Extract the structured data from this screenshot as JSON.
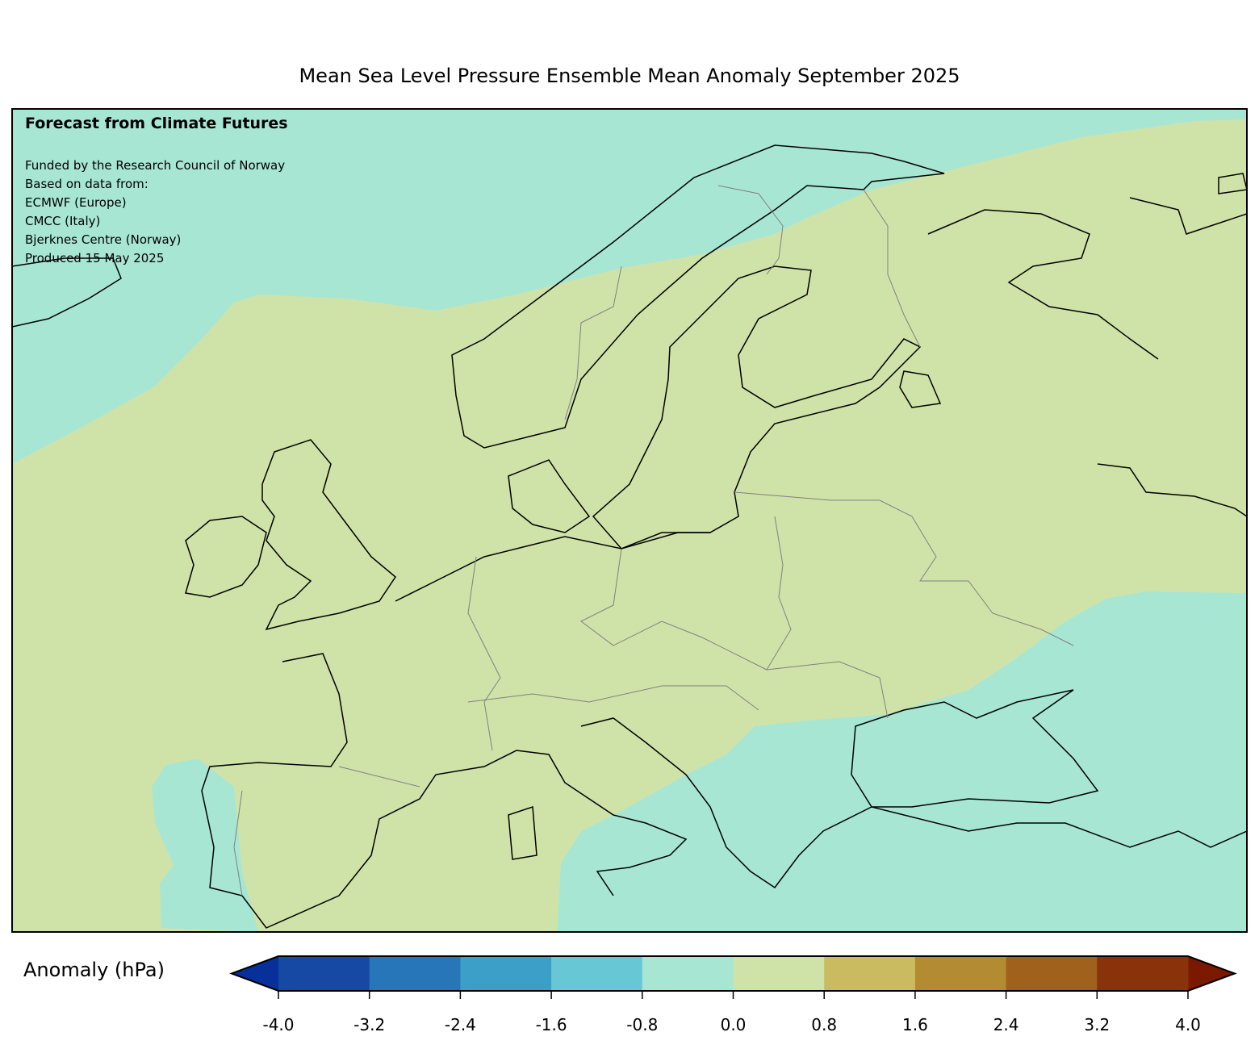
{
  "title": "Mean Sea Level Pressure Ensemble Mean Anomaly September 2025",
  "annotation": {
    "heading": "Forecast from Climate Futures",
    "lines": [
      "Funded by the Research Council of Norway",
      "Based on data from:",
      "ECMWF (Europe)",
      "CMCC (Italy)",
      "Bjerknes Centre (Norway)",
      "Produced 15 May 2025"
    ]
  },
  "chart_data": {
    "type": "heatmap",
    "region": "Europe",
    "variable": "Mean sea level pressure anomaly",
    "colorbar": {
      "label": "Anomaly (hPa)",
      "levels": [
        -4.0,
        -3.2,
        -2.4,
        -1.6,
        -0.8,
        0.0,
        0.8,
        1.6,
        2.4,
        3.2,
        4.0
      ],
      "tick_labels": [
        "-4.0",
        "-3.2",
        "-2.4",
        "-1.6",
        "-0.8",
        "0.0",
        "0.8",
        "1.6",
        "2.4",
        "3.2",
        "4.0"
      ],
      "colors": [
        "#1649a3",
        "#2676b8",
        "#3c9fc8",
        "#68c7d5",
        "#a8e6d4",
        "#cfe3a8",
        "#cbbb60",
        "#b38b32",
        "#a0611c",
        "#88330a"
      ],
      "extend_low_color": "#08309a",
      "extend_high_color": "#7a1800"
    },
    "field_summary": {
      "-0.8 to 0.0": "Norwegian Sea, northern Atlantic, Iberian west coast, Mediterranean, Balkans, Black Sea, Turkey",
      "0.0 to 0.8": "Most of continental Europe, Scandinavia, Atlantic, western Russia"
    }
  }
}
